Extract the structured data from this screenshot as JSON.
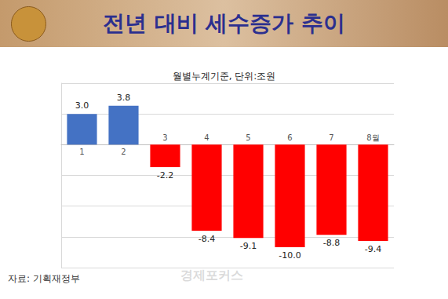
{
  "chart_data": {
    "type": "bar",
    "title": "전년 대비 세수증가 추이",
    "subtitle": "월별누계기준, 단위:조원",
    "annotations": [
      "자료: 기획재정부",
      "경제포커스"
    ],
    "categories": [
      "1",
      "2",
      "3",
      "4",
      "5",
      "6",
      "7",
      "8월"
    ],
    "values": [
      3.0,
      3.8,
      -2.2,
      -8.4,
      -9.1,
      -10.0,
      -8.8,
      -9.4
    ],
    "value_labels": [
      "3.0",
      "3.8",
      "-2.2",
      "-8.4",
      "-9.1",
      "-10.0",
      "-8.8",
      "-9.4"
    ],
    "colors": [
      "#4472c4",
      "#4472c4",
      "#ff0000",
      "#ff0000",
      "#ff0000",
      "#ff0000",
      "#ff0000",
      "#ff0000"
    ],
    "ylim": [
      -12,
      6
    ],
    "yticks": [
      -12,
      -9,
      -6,
      -3,
      0,
      3,
      6
    ],
    "grid": true,
    "data_labels": true,
    "tick_labels": "x"
  }
}
